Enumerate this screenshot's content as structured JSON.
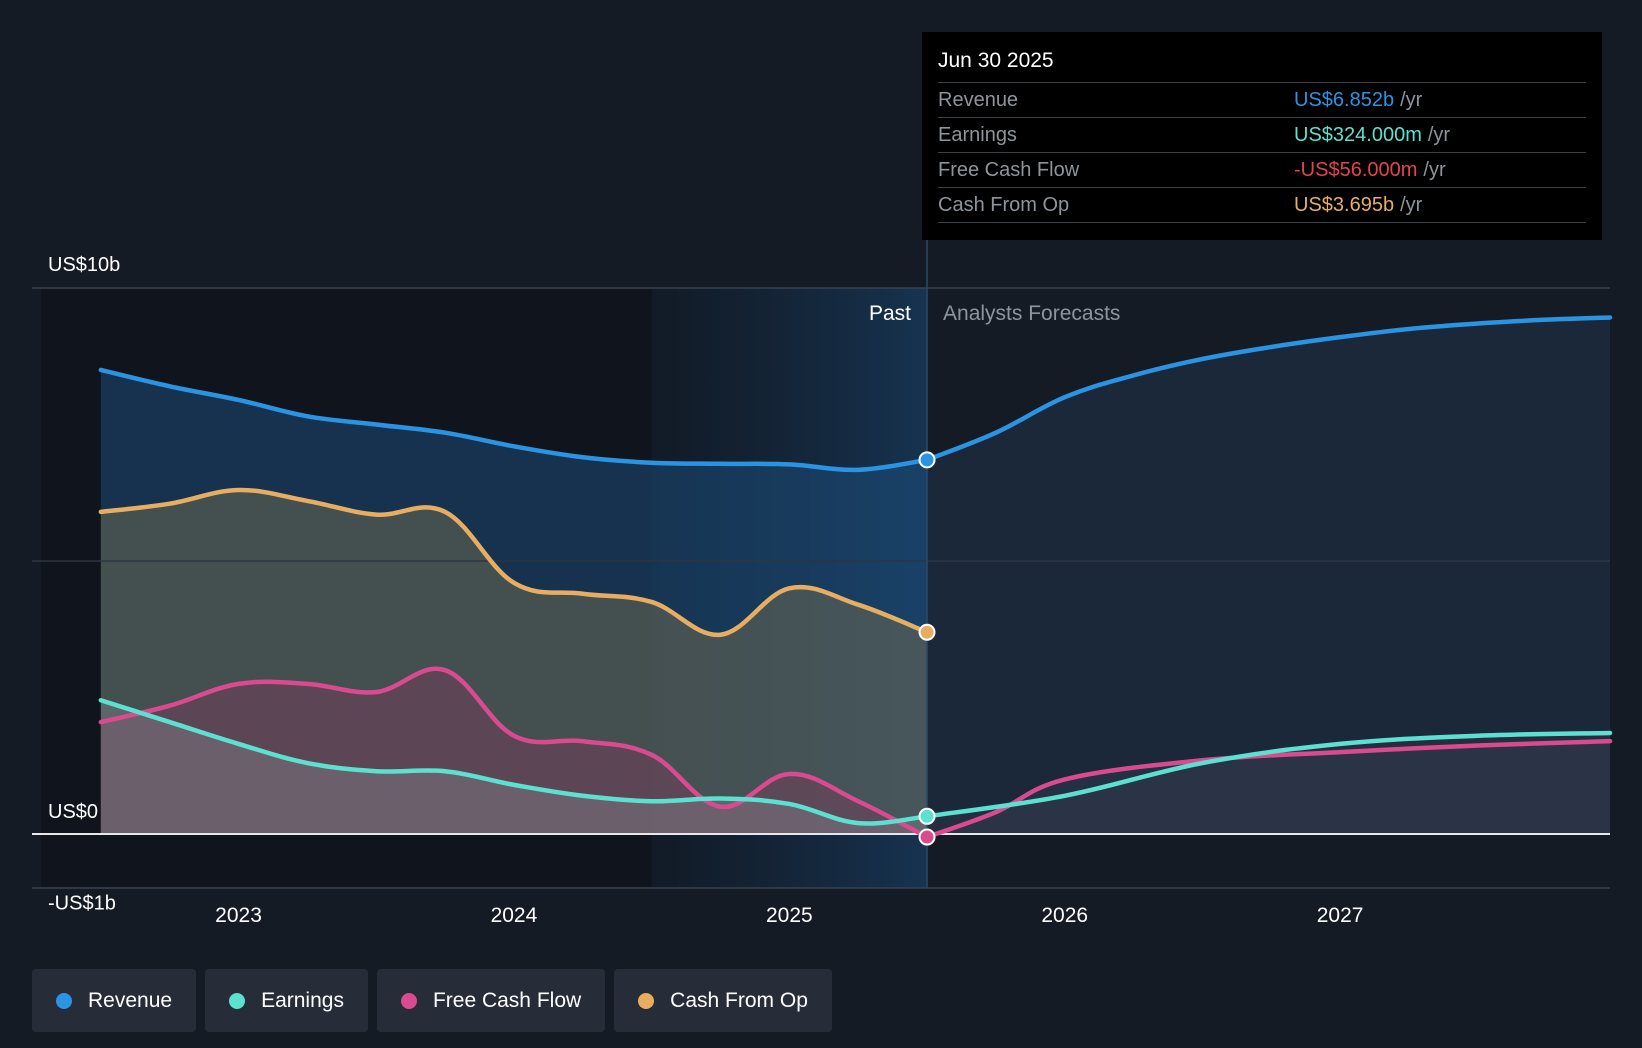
{
  "chart_data": {
    "type": "area",
    "ylim": [
      -1,
      10
    ],
    "y_tick_labels": [
      {
        "value": 10,
        "label": "US$10b"
      },
      {
        "value": 0,
        "label": "US$0"
      },
      {
        "value": -1,
        "label": "-US$1b"
      }
    ],
    "x_ticks": [
      {
        "value": 2023.0,
        "label": "2023"
      },
      {
        "value": 2024.0,
        "label": "2024"
      },
      {
        "value": 2025.0,
        "label": "2025"
      },
      {
        "value": 2026.0,
        "label": "2026"
      },
      {
        "value": 2027.0,
        "label": "2027"
      }
    ],
    "xlim": [
      2022.25,
      2027.98
    ],
    "past_label": "Past",
    "forecast_label": "Analysts Forecasts",
    "divider_x": 2025.5,
    "highlight_start_x": 2024.5,
    "series": [
      {
        "name": "Revenue",
        "color": "#2a94e3",
        "past": [
          [
            2022.5,
            8.5
          ],
          [
            2022.75,
            8.2
          ],
          [
            2023.0,
            7.95
          ],
          [
            2023.25,
            7.65
          ],
          [
            2023.5,
            7.5
          ],
          [
            2023.75,
            7.35
          ],
          [
            2024.0,
            7.1
          ],
          [
            2024.25,
            6.9
          ],
          [
            2024.5,
            6.8
          ],
          [
            2024.75,
            6.78
          ],
          [
            2025.0,
            6.77
          ],
          [
            2025.25,
            6.67
          ],
          [
            2025.5,
            6.852
          ]
        ],
        "forecast": [
          [
            2025.5,
            6.852
          ],
          [
            2025.75,
            7.35
          ],
          [
            2026.0,
            8.0
          ],
          [
            2026.25,
            8.4
          ],
          [
            2026.5,
            8.7
          ],
          [
            2026.75,
            8.92
          ],
          [
            2027.0,
            9.1
          ],
          [
            2027.25,
            9.25
          ],
          [
            2027.5,
            9.35
          ],
          [
            2027.75,
            9.42
          ],
          [
            2027.98,
            9.46
          ]
        ]
      },
      {
        "name": "Cash From Op",
        "color": "#e7ae62",
        "past": [
          [
            2022.5,
            5.9
          ],
          [
            2022.75,
            6.05
          ],
          [
            2023.0,
            6.3
          ],
          [
            2023.25,
            6.1
          ],
          [
            2023.5,
            5.85
          ],
          [
            2023.75,
            5.9
          ],
          [
            2024.0,
            4.6
          ],
          [
            2024.25,
            4.4
          ],
          [
            2024.5,
            4.25
          ],
          [
            2024.75,
            3.65
          ],
          [
            2025.0,
            4.5
          ],
          [
            2025.25,
            4.2
          ],
          [
            2025.5,
            3.695
          ]
        ],
        "forecast": []
      },
      {
        "name": "Free Cash Flow",
        "color": "#d94b8e",
        "past": [
          [
            2022.5,
            2.05
          ],
          [
            2022.75,
            2.35
          ],
          [
            2023.0,
            2.75
          ],
          [
            2023.25,
            2.75
          ],
          [
            2023.5,
            2.6
          ],
          [
            2023.75,
            3.0
          ],
          [
            2024.0,
            1.8
          ],
          [
            2024.25,
            1.7
          ],
          [
            2024.5,
            1.45
          ],
          [
            2024.75,
            0.5
          ],
          [
            2025.0,
            1.1
          ],
          [
            2025.25,
            0.6
          ],
          [
            2025.5,
            -0.056
          ]
        ],
        "forecast": [
          [
            2025.5,
            -0.056
          ],
          [
            2025.75,
            0.4
          ],
          [
            2026.0,
            1.0
          ],
          [
            2026.5,
            1.35
          ],
          [
            2027.0,
            1.5
          ],
          [
            2027.5,
            1.62
          ],
          [
            2027.98,
            1.7
          ]
        ]
      },
      {
        "name": "Earnings",
        "color": "#5ce0cf",
        "past": [
          [
            2022.5,
            2.45
          ],
          [
            2022.75,
            2.05
          ],
          [
            2023.0,
            1.65
          ],
          [
            2023.25,
            1.3
          ],
          [
            2023.5,
            1.15
          ],
          [
            2023.75,
            1.15
          ],
          [
            2024.0,
            0.9
          ],
          [
            2024.25,
            0.7
          ],
          [
            2024.5,
            0.6
          ],
          [
            2024.75,
            0.65
          ],
          [
            2025.0,
            0.55
          ],
          [
            2025.25,
            0.2
          ],
          [
            2025.5,
            0.324
          ]
        ],
        "forecast": [
          [
            2025.5,
            0.324
          ],
          [
            2026.0,
            0.7
          ],
          [
            2026.5,
            1.3
          ],
          [
            2027.0,
            1.65
          ],
          [
            2027.5,
            1.8
          ],
          [
            2027.98,
            1.85
          ]
        ]
      }
    ]
  },
  "tooltip": {
    "date": "Jun 30 2025",
    "rows": [
      {
        "label": "Revenue",
        "value": "US$6.852b",
        "unit": "/yr",
        "color": "#2a94e3"
      },
      {
        "label": "Earnings",
        "value": "US$324.000m",
        "unit": "/yr",
        "color": "#5ce0cf"
      },
      {
        "label": "Free Cash Flow",
        "value": "-US$56.000m",
        "unit": "/yr",
        "color": "#e2454c"
      },
      {
        "label": "Cash From Op",
        "value": "US$3.695b",
        "unit": "/yr",
        "color": "#e7ae62"
      }
    ]
  },
  "legend": [
    {
      "label": "Revenue",
      "color": "#2a94e3"
    },
    {
      "label": "Earnings",
      "color": "#5ce0cf"
    },
    {
      "label": "Free Cash Flow",
      "color": "#d94b8e"
    },
    {
      "label": "Cash From Op",
      "color": "#e7ae62"
    }
  ]
}
